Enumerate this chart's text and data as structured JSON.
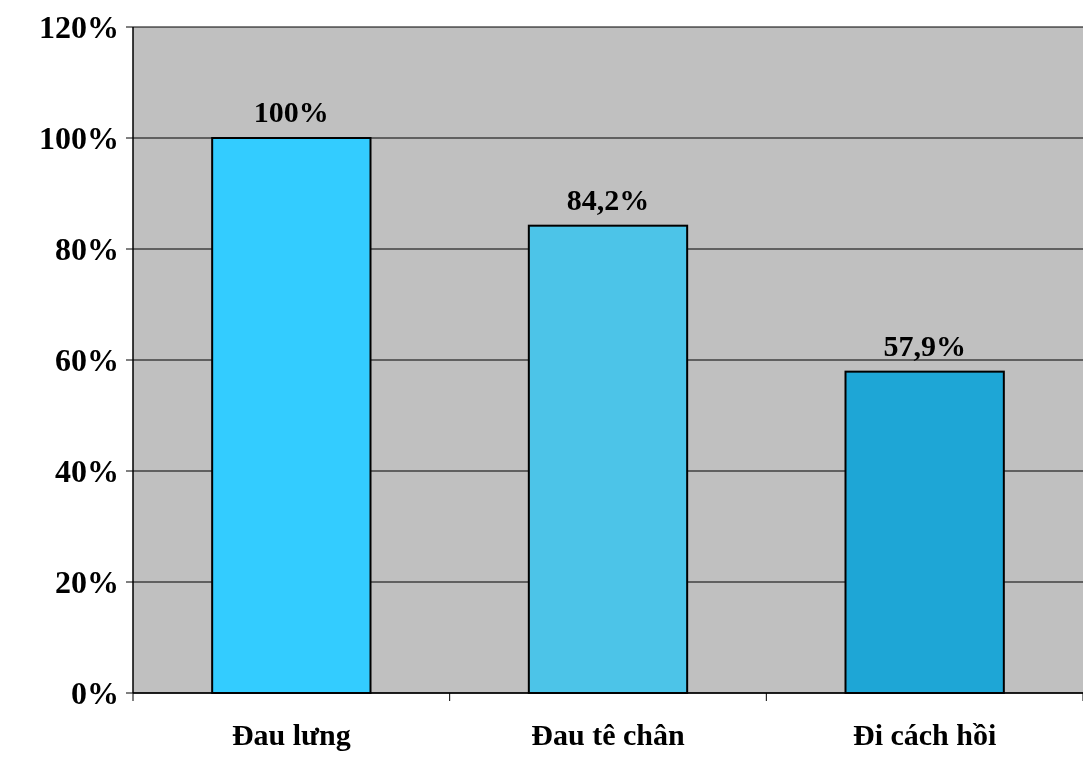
{
  "chart_data": {
    "type": "bar",
    "categories": [
      "Đau lưng",
      "Đau tê chân",
      "Đi cách hồi"
    ],
    "values": [
      100,
      84.2,
      57.9
    ],
    "colors": [
      "#33ccff",
      "#4cc4e8",
      "#1ea6d6"
    ],
    "value_labels": [
      "100%",
      "84,2%",
      "57,9%"
    ],
    "ylim": [
      0,
      120
    ],
    "yticks": [
      {
        "value": 0,
        "label": "0%"
      },
      {
        "value": 20,
        "label": "20%"
      },
      {
        "value": 40,
        "label": "40%"
      },
      {
        "value": 60,
        "label": "60%"
      },
      {
        "value": 80,
        "label": "80%"
      },
      {
        "value": 100,
        "label": "100%"
      },
      {
        "value": 120,
        "label": "120%"
      }
    ],
    "grid": "y"
  }
}
